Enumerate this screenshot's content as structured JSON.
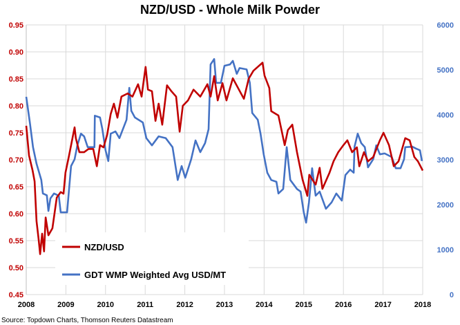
{
  "chart_data": {
    "type": "line",
    "title": "NZD/USD - Whole Milk Powder",
    "source": "Source: Topdown Charts, Thomson Reuters Datastream",
    "x_ticks": [
      "2008",
      "2009",
      "2010",
      "2011",
      "2012",
      "2013",
      "2014",
      "2015",
      "2016",
      "2017",
      "2018"
    ],
    "xlim": [
      2008,
      2018
    ],
    "y_left": {
      "ylim": [
        0.45,
        0.95
      ],
      "ticks": [
        "0.45",
        "0.50",
        "0.55",
        "0.60",
        "0.65",
        "0.70",
        "0.75",
        "0.80",
        "0.85",
        "0.90",
        "0.95"
      ]
    },
    "y_right": {
      "ylim": [
        0,
        6000
      ],
      "ticks": [
        "0",
        "1000",
        "2000",
        "3000",
        "4000",
        "5000",
        "6000"
      ]
    },
    "grid": true,
    "legend_position": "bottom-left",
    "series": [
      {
        "name": "NZD/USD",
        "axis": "left",
        "color": "#c00000",
        "points": [
          [
            2008.0,
            0.763
          ],
          [
            2008.07,
            0.708
          ],
          [
            2008.16,
            0.68
          ],
          [
            2008.21,
            0.66
          ],
          [
            2008.26,
            0.586
          ],
          [
            2008.31,
            0.554
          ],
          [
            2008.35,
            0.525
          ],
          [
            2008.4,
            0.563
          ],
          [
            2008.45,
            0.53
          ],
          [
            2008.49,
            0.593
          ],
          [
            2008.56,
            0.56
          ],
          [
            2008.66,
            0.573
          ],
          [
            2008.77,
            0.63
          ],
          [
            2008.87,
            0.64
          ],
          [
            2008.94,
            0.637
          ],
          [
            2008.99,
            0.676
          ],
          [
            2009.08,
            0.708
          ],
          [
            2009.22,
            0.76
          ],
          [
            2009.25,
            0.74
          ],
          [
            2009.34,
            0.714
          ],
          [
            2009.46,
            0.714
          ],
          [
            2009.57,
            0.72
          ],
          [
            2009.69,
            0.72
          ],
          [
            2009.78,
            0.688
          ],
          [
            2009.86,
            0.727
          ],
          [
            2009.95,
            0.723
          ],
          [
            2010.04,
            0.746
          ],
          [
            2010.13,
            0.785
          ],
          [
            2010.21,
            0.804
          ],
          [
            2010.3,
            0.778
          ],
          [
            2010.4,
            0.817
          ],
          [
            2010.56,
            0.823
          ],
          [
            2010.68,
            0.817
          ],
          [
            2010.82,
            0.84
          ],
          [
            2010.91,
            0.817
          ],
          [
            2010.96,
            0.845
          ],
          [
            2011.01,
            0.872
          ],
          [
            2011.07,
            0.83
          ],
          [
            2011.17,
            0.827
          ],
          [
            2011.26,
            0.772
          ],
          [
            2011.34,
            0.804
          ],
          [
            2011.43,
            0.765
          ],
          [
            2011.55,
            0.838
          ],
          [
            2011.66,
            0.827
          ],
          [
            2011.78,
            0.817
          ],
          [
            2011.87,
            0.752
          ],
          [
            2011.95,
            0.8
          ],
          [
            2012.08,
            0.81
          ],
          [
            2012.22,
            0.83
          ],
          [
            2012.39,
            0.817
          ],
          [
            2012.57,
            0.84
          ],
          [
            2012.65,
            0.817
          ],
          [
            2012.74,
            0.855
          ],
          [
            2012.83,
            0.81
          ],
          [
            2012.95,
            0.842
          ],
          [
            2013.05,
            0.81
          ],
          [
            2013.21,
            0.851
          ],
          [
            2013.49,
            0.813
          ],
          [
            2013.61,
            0.85
          ],
          [
            2013.73,
            0.865
          ],
          [
            2013.96,
            0.88
          ],
          [
            2014.01,
            0.856
          ],
          [
            2014.13,
            0.833
          ],
          [
            2014.18,
            0.79
          ],
          [
            2014.36,
            0.782
          ],
          [
            2014.52,
            0.727
          ],
          [
            2014.6,
            0.755
          ],
          [
            2014.71,
            0.765
          ],
          [
            2014.83,
            0.714
          ],
          [
            2014.97,
            0.663
          ],
          [
            2015.09,
            0.633
          ],
          [
            2015.14,
            0.672
          ],
          [
            2015.3,
            0.654
          ],
          [
            2015.4,
            0.685
          ],
          [
            2015.47,
            0.646
          ],
          [
            2015.65,
            0.676
          ],
          [
            2015.75,
            0.697
          ],
          [
            2015.87,
            0.714
          ],
          [
            2016.0,
            0.727
          ],
          [
            2016.1,
            0.736
          ],
          [
            2016.22,
            0.714
          ],
          [
            2016.34,
            0.723
          ],
          [
            2016.4,
            0.688
          ],
          [
            2016.52,
            0.714
          ],
          [
            2016.62,
            0.697
          ],
          [
            2016.75,
            0.705
          ],
          [
            2016.92,
            0.736
          ],
          [
            2017.01,
            0.75
          ],
          [
            2017.15,
            0.727
          ],
          [
            2017.27,
            0.688
          ],
          [
            2017.39,
            0.697
          ],
          [
            2017.56,
            0.74
          ],
          [
            2017.67,
            0.736
          ],
          [
            2017.79,
            0.705
          ],
          [
            2017.88,
            0.697
          ],
          [
            2018.0,
            0.68
          ]
        ]
      },
      {
        "name": "GDT WMP Weighted Avg USD/MT",
        "axis": "right",
        "color": "#4472c4",
        "points": [
          [
            2008.0,
            4400
          ],
          [
            2008.09,
            3830
          ],
          [
            2008.17,
            3280
          ],
          [
            2008.26,
            2910
          ],
          [
            2008.38,
            2550
          ],
          [
            2008.42,
            2250
          ],
          [
            2008.52,
            2210
          ],
          [
            2008.56,
            1860
          ],
          [
            2008.61,
            2140
          ],
          [
            2008.7,
            2250
          ],
          [
            2008.82,
            2200
          ],
          [
            2008.87,
            1830
          ],
          [
            2009.03,
            1830
          ],
          [
            2009.08,
            2350
          ],
          [
            2009.13,
            2860
          ],
          [
            2009.22,
            3010
          ],
          [
            2009.29,
            3320
          ],
          [
            2009.38,
            3580
          ],
          [
            2009.46,
            3520
          ],
          [
            2009.55,
            3280
          ],
          [
            2009.72,
            3280
          ],
          [
            2009.73,
            3980
          ],
          [
            2009.86,
            3940
          ],
          [
            2009.92,
            3680
          ],
          [
            2010.0,
            3210
          ],
          [
            2010.07,
            2970
          ],
          [
            2010.13,
            3580
          ],
          [
            2010.25,
            3630
          ],
          [
            2010.35,
            3480
          ],
          [
            2010.53,
            3890
          ],
          [
            2010.6,
            4600
          ],
          [
            2010.65,
            4090
          ],
          [
            2010.74,
            3940
          ],
          [
            2010.94,
            3830
          ],
          [
            2011.03,
            3480
          ],
          [
            2011.17,
            3320
          ],
          [
            2011.34,
            3520
          ],
          [
            2011.52,
            3480
          ],
          [
            2011.69,
            3280
          ],
          [
            2011.82,
            2550
          ],
          [
            2011.92,
            2860
          ],
          [
            2012.01,
            2600
          ],
          [
            2012.16,
            3010
          ],
          [
            2012.27,
            3430
          ],
          [
            2012.39,
            3170
          ],
          [
            2012.51,
            3370
          ],
          [
            2012.6,
            3680
          ],
          [
            2012.65,
            5120
          ],
          [
            2012.74,
            5240
          ],
          [
            2012.79,
            4710
          ],
          [
            2012.91,
            4710
          ],
          [
            2013.0,
            5090
          ],
          [
            2013.14,
            5120
          ],
          [
            2013.21,
            5200
          ],
          [
            2013.31,
            4910
          ],
          [
            2013.38,
            5040
          ],
          [
            2013.56,
            5010
          ],
          [
            2013.64,
            4710
          ],
          [
            2013.7,
            4040
          ],
          [
            2013.84,
            3890
          ],
          [
            2013.91,
            3580
          ],
          [
            2013.99,
            3120
          ],
          [
            2014.08,
            2710
          ],
          [
            2014.18,
            2550
          ],
          [
            2014.31,
            2510
          ],
          [
            2014.36,
            2250
          ],
          [
            2014.48,
            2350
          ],
          [
            2014.57,
            3280
          ],
          [
            2014.66,
            2550
          ],
          [
            2014.83,
            2350
          ],
          [
            2014.92,
            2290
          ],
          [
            2015.0,
            1830
          ],
          [
            2015.06,
            1600
          ],
          [
            2015.13,
            2050
          ],
          [
            2015.21,
            2810
          ],
          [
            2015.3,
            2200
          ],
          [
            2015.4,
            2290
          ],
          [
            2015.56,
            1910
          ],
          [
            2015.7,
            2050
          ],
          [
            2015.82,
            2250
          ],
          [
            2015.96,
            2090
          ],
          [
            2016.05,
            2660
          ],
          [
            2016.17,
            2780
          ],
          [
            2016.26,
            2710
          ],
          [
            2016.28,
            3290
          ],
          [
            2016.36,
            3580
          ],
          [
            2016.45,
            3370
          ],
          [
            2016.54,
            3280
          ],
          [
            2016.62,
            2830
          ],
          [
            2016.75,
            3010
          ],
          [
            2016.83,
            3320
          ],
          [
            2016.92,
            3120
          ],
          [
            2017.04,
            3140
          ],
          [
            2017.22,
            3060
          ],
          [
            2017.32,
            2810
          ],
          [
            2017.44,
            2810
          ],
          [
            2017.53,
            3010
          ],
          [
            2017.56,
            3280
          ],
          [
            2017.74,
            3290
          ],
          [
            2017.83,
            3250
          ],
          [
            2017.93,
            3210
          ],
          [
            2017.98,
            2970
          ]
        ]
      }
    ]
  }
}
